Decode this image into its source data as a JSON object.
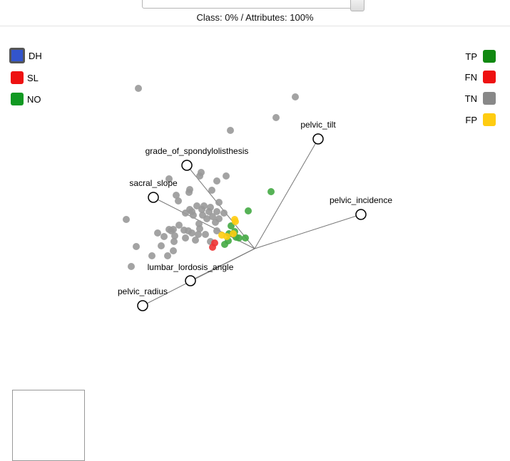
{
  "header": {
    "text": "Class: 0% / Attributes: 100%"
  },
  "legend_classes": [
    {
      "name": "DH",
      "color": "#3355cc",
      "selected": true
    },
    {
      "name": "SL",
      "color": "#ee1111",
      "selected": false
    },
    {
      "name": "NO",
      "color": "#119922",
      "selected": false
    }
  ],
  "legend_outcomes": [
    {
      "name": "TP",
      "color": "#118811"
    },
    {
      "name": "FN",
      "color": "#ee1111"
    },
    {
      "name": "TN",
      "color": "#888888"
    },
    {
      "name": "FP",
      "color": "#ffcc11"
    }
  ],
  "chart_data": {
    "type": "scatter",
    "title": "",
    "origin": [
      0,
      0
    ],
    "axes": [
      {
        "name": "pelvic_tilt",
        "end": [
          0.89,
          1.54
        ]
      },
      {
        "name": "grade_of_spondylolisthesis",
        "end": [
          -0.95,
          1.17
        ]
      },
      {
        "name": "sacral_slope",
        "end": [
          -1.42,
          0.72
        ]
      },
      {
        "name": "pelvic_incidence",
        "end": [
          1.49,
          0.48
        ]
      },
      {
        "name": "lumbar_lordosis_angle",
        "end": [
          -0.9,
          -0.45
        ]
      },
      {
        "name": "pelvic_radius",
        "end": [
          -1.57,
          -0.8
        ]
      }
    ],
    "series": [
      {
        "name": "TN",
        "color": "#999999",
        "points": [
          [
            -1.63,
            2.25
          ],
          [
            0.57,
            2.13
          ],
          [
            0.3,
            1.84
          ],
          [
            -0.34,
            1.66
          ],
          [
            -0.77,
            1.02
          ],
          [
            -1.2,
            0.98
          ],
          [
            -0.75,
            1.07
          ],
          [
            -0.4,
            1.02
          ],
          [
            -0.53,
            0.95
          ],
          [
            -0.91,
            0.83
          ],
          [
            -0.92,
            0.79
          ],
          [
            -0.6,
            0.82
          ],
          [
            -1.1,
            0.75
          ],
          [
            -1.07,
            0.67
          ],
          [
            -0.91,
            0.55
          ],
          [
            -0.81,
            0.6
          ],
          [
            -0.71,
            0.6
          ],
          [
            -0.62,
            0.58
          ],
          [
            -0.53,
            0.52
          ],
          [
            -0.74,
            0.55
          ],
          [
            -0.64,
            0.52
          ],
          [
            -0.97,
            0.5
          ],
          [
            -0.86,
            0.47
          ],
          [
            -0.73,
            0.47
          ],
          [
            -0.67,
            0.42
          ],
          [
            -0.78,
            0.35
          ],
          [
            -0.5,
            0.42
          ],
          [
            -0.55,
            0.37
          ],
          [
            -1.8,
            0.41
          ],
          [
            -1.14,
            0.27
          ],
          [
            -1.2,
            0.27
          ],
          [
            -1.17,
            0.25
          ],
          [
            -0.99,
            0.26
          ],
          [
            -0.93,
            0.25
          ],
          [
            -0.88,
            0.22
          ],
          [
            -1.12,
            0.18
          ],
          [
            -0.97,
            0.15
          ],
          [
            -0.79,
            0.2
          ],
          [
            -0.69,
            0.2
          ],
          [
            -1.13,
            0.1
          ],
          [
            -0.83,
            0.12
          ],
          [
            -1.31,
            0.04
          ],
          [
            -1.66,
            0.03
          ],
          [
            -1.14,
            -0.03
          ],
          [
            -1.22,
            -0.1
          ],
          [
            -1.44,
            -0.1
          ],
          [
            -1.73,
            -0.25
          ],
          [
            -0.5,
            0.65
          ],
          [
            -0.43,
            0.5
          ],
          [
            -0.59,
            0.45
          ],
          [
            -0.77,
            0.28
          ],
          [
            -0.88,
            0.52
          ],
          [
            -1.06,
            0.33
          ],
          [
            -1.27,
            0.17
          ],
          [
            -0.62,
            0.1
          ],
          [
            -0.53,
            0.25
          ],
          [
            -1.36,
            0.22
          ]
        ]
      },
      {
        "name": "TP",
        "color": "#44aa44",
        "points": [
          [
            0.23,
            0.8
          ],
          [
            -0.09,
            0.53
          ],
          [
            -0.33,
            0.32
          ],
          [
            -0.28,
            0.24
          ],
          [
            -0.26,
            0.16
          ],
          [
            -0.13,
            0.15
          ],
          [
            -0.22,
            0.15
          ],
          [
            -0.36,
            0.21
          ],
          [
            -0.37,
            0.11
          ],
          [
            -0.42,
            0.06
          ]
        ]
      },
      {
        "name": "FN",
        "color": "#ee3333",
        "points": [
          [
            -0.56,
            0.08
          ],
          [
            -0.59,
            0.02
          ]
        ]
      },
      {
        "name": "FP",
        "color": "#ffcc11",
        "points": [
          [
            -0.28,
            0.41
          ],
          [
            -0.27,
            0.38
          ],
          [
            -0.46,
            0.19
          ],
          [
            -0.3,
            0.21
          ],
          [
            -0.39,
            0.17
          ]
        ]
      }
    ]
  }
}
